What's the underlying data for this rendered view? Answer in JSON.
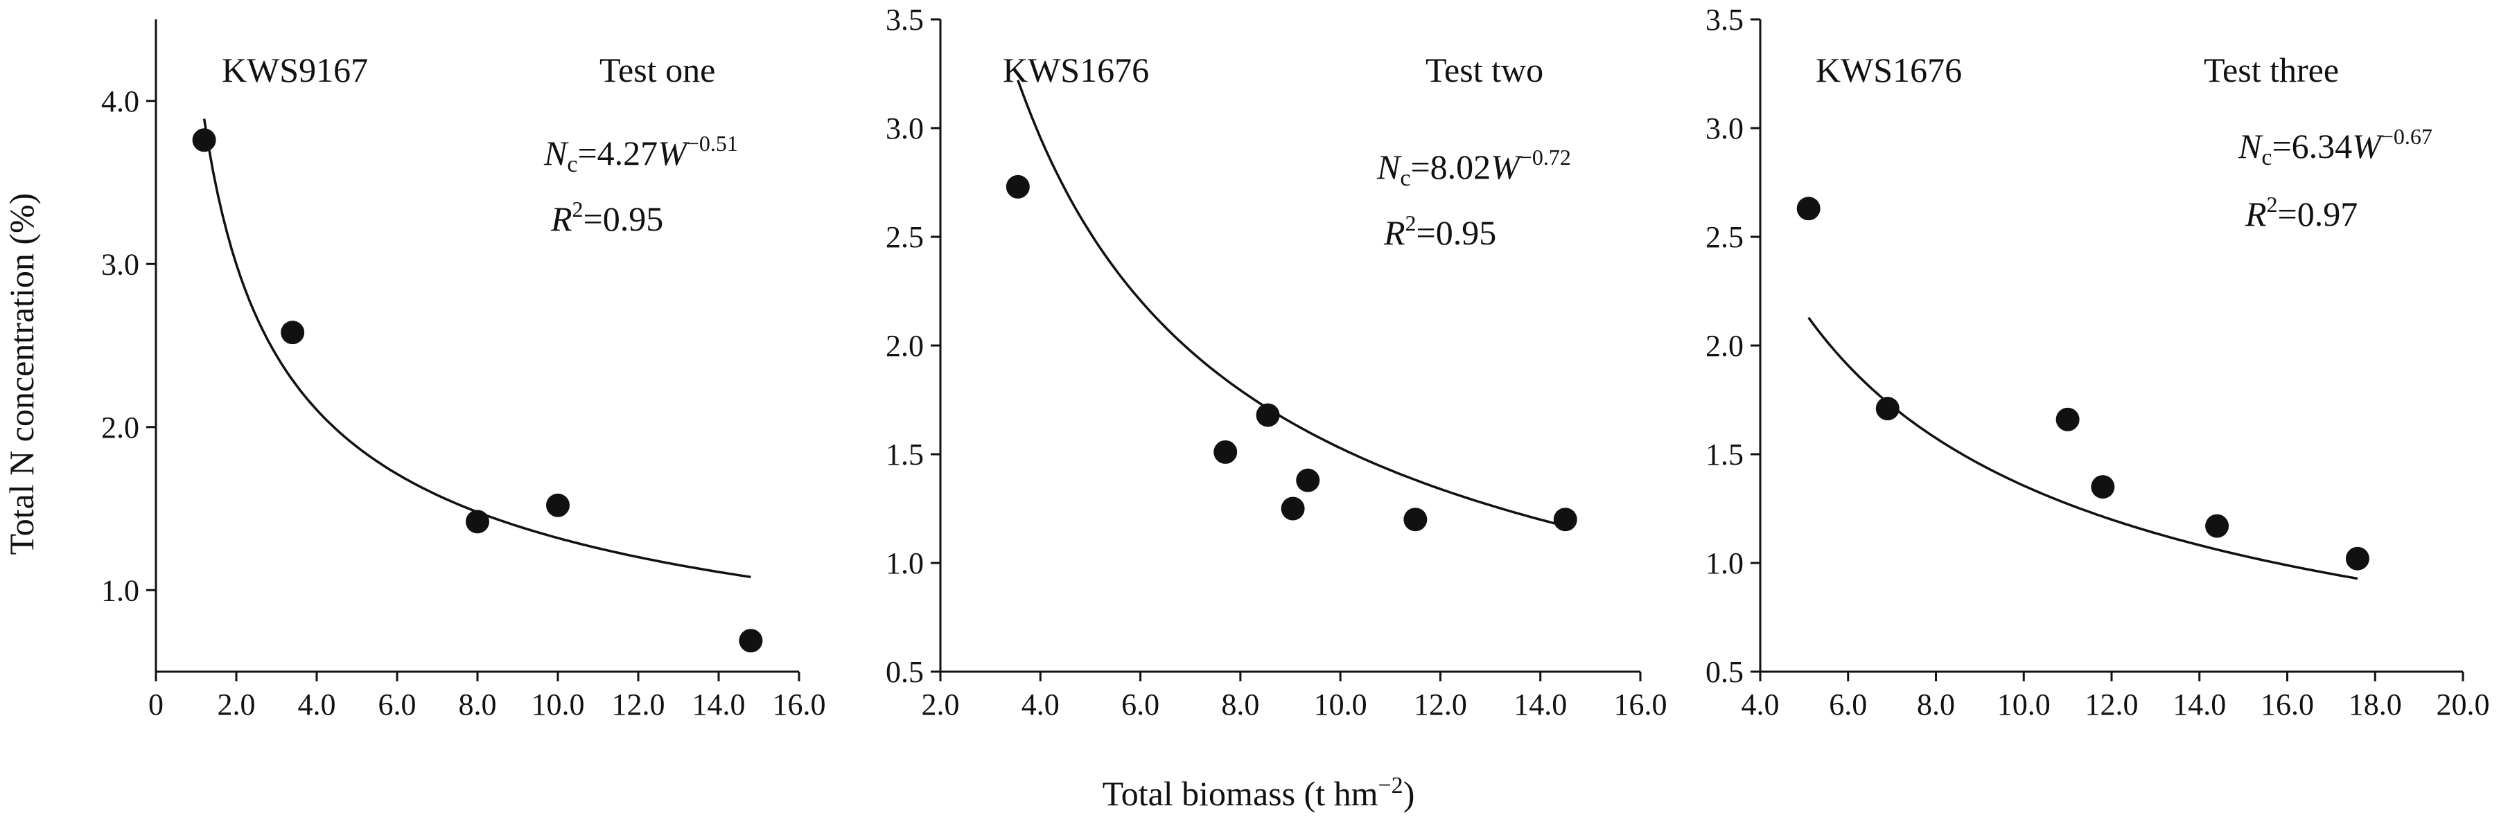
{
  "figure": {
    "ylabel": "Total N concentration (%)",
    "xlabel": "Total biomass (t hm−2)"
  },
  "chart_data": [
    {
      "type": "scatter",
      "cultivar": "KWS9167",
      "test": "Test one",
      "equation": {
        "coef": "4.27",
        "exp": "−0.51",
        "r2": "0.95"
      },
      "fit": {
        "a": 4.27,
        "b": -0.51,
        "xmin": 1.2,
        "xmax": 14.8
      },
      "xlim": [
        0,
        16
      ],
      "ylim": [
        0.5,
        4.5
      ],
      "xticks": [
        0,
        2,
        4,
        6,
        8,
        10,
        12,
        14,
        16
      ],
      "xtick_labels": [
        "0",
        "2.0",
        "4.0",
        "6.0",
        "8.0",
        "10.0",
        "12.0",
        "14.0",
        "16.0"
      ],
      "yticks": [
        1,
        2,
        3,
        4
      ],
      "ytick_labels": [
        "1.0",
        "2.0",
        "3.0",
        "4.0"
      ],
      "points": [
        {
          "x": 1.2,
          "y": 3.76
        },
        {
          "x": 3.4,
          "y": 2.58
        },
        {
          "x": 8.0,
          "y": 1.42
        },
        {
          "x": 10.0,
          "y": 1.52
        },
        {
          "x": 14.8,
          "y": 0.69
        }
      ]
    },
    {
      "type": "scatter",
      "cultivar": "KWS1676",
      "test": "Test two",
      "equation": {
        "coef": "8.02",
        "exp": "−0.72",
        "r2": "0.95"
      },
      "fit": {
        "a": 8.02,
        "b": -0.72,
        "xmin": 3.55,
        "xmax": 14.5
      },
      "xlim": [
        2,
        16
      ],
      "ylim": [
        0.5,
        3.5
      ],
      "xticks": [
        2,
        4,
        6,
        8,
        10,
        12,
        14,
        16
      ],
      "xtick_labels": [
        "2.0",
        "4.0",
        "6.0",
        "8.0",
        "10.0",
        "12.0",
        "14.0",
        "16.0"
      ],
      "yticks": [
        0.5,
        1.0,
        1.5,
        2.0,
        2.5,
        3.0,
        3.5
      ],
      "ytick_labels": [
        "0.5",
        "1.0",
        "1.5",
        "2.0",
        "2.5",
        "3.0",
        "3.5"
      ],
      "points": [
        {
          "x": 3.55,
          "y": 2.73
        },
        {
          "x": 7.7,
          "y": 1.51
        },
        {
          "x": 8.55,
          "y": 1.68
        },
        {
          "x": 9.05,
          "y": 1.25
        },
        {
          "x": 9.35,
          "y": 1.38
        },
        {
          "x": 11.5,
          "y": 1.2
        },
        {
          "x": 14.5,
          "y": 1.2
        }
      ]
    },
    {
      "type": "scatter",
      "cultivar": "KWS1676",
      "test": "Test three",
      "equation": {
        "coef": "6.34",
        "exp": "−0.67",
        "r2": "0.97"
      },
      "fit": {
        "a": 6.34,
        "b": -0.67,
        "xmin": 5.1,
        "xmax": 17.6
      },
      "xlim": [
        4,
        20
      ],
      "ylim": [
        0.5,
        3.5
      ],
      "xticks": [
        4,
        6,
        8,
        10,
        12,
        14,
        16,
        18,
        20
      ],
      "xtick_labels": [
        "4.0",
        "6.0",
        "8.0",
        "10.0",
        "12.0",
        "14.0",
        "16.0",
        "18.0",
        "20.0"
      ],
      "yticks": [
        0.5,
        1.0,
        1.5,
        2.0,
        2.5,
        3.0,
        3.5
      ],
      "ytick_labels": [
        "0.5",
        "1.0",
        "1.5",
        "2.0",
        "2.5",
        "3.0",
        "3.5"
      ],
      "points": [
        {
          "x": 5.1,
          "y": 2.63
        },
        {
          "x": 6.9,
          "y": 1.71
        },
        {
          "x": 11.0,
          "y": 1.66
        },
        {
          "x": 11.8,
          "y": 1.35
        },
        {
          "x": 14.4,
          "y": 1.17
        },
        {
          "x": 17.6,
          "y": 1.02
        }
      ]
    }
  ]
}
